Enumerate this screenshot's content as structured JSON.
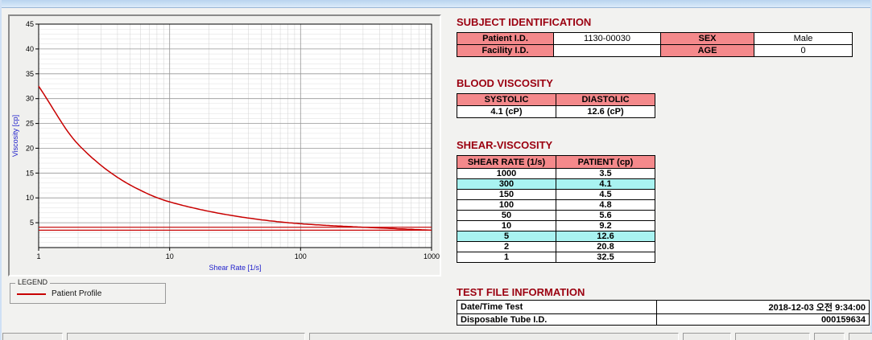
{
  "colors": {
    "header_pink": "#f4898b",
    "highlight_cyan": "#a9f3f1",
    "heading_red": "#9b0010",
    "curve_red": "#c80000",
    "axis_label_blue": "#2222cc",
    "title_strip_blue": "#c6dcf4"
  },
  "chart_data": {
    "type": "line",
    "x": [
      1,
      2,
      5,
      10,
      50,
      100,
      150,
      300,
      1000
    ],
    "series": [
      {
        "name": "Patient Profile",
        "values": [
          32.5,
          20.8,
          12.6,
          9.2,
          5.6,
          4.8,
          4.5,
          4.1,
          3.5
        ]
      }
    ],
    "x_scale": "log",
    "xlim": [
      1,
      1000
    ],
    "ylim": [
      0,
      45
    ],
    "x_ticks": [
      1,
      10,
      100,
      1000
    ],
    "y_major_ticks": [
      5,
      10,
      15,
      20,
      25,
      30,
      35,
      40,
      45
    ],
    "reference_lines": [
      3.5,
      4.1
    ],
    "xlabel": "Shear Rate [1/s]",
    "ylabel": "Viscosity [cp]",
    "grid": true,
    "legend_position": "below-left",
    "title": ""
  },
  "legend": {
    "title": "LEGEND",
    "entries": [
      {
        "label": "Patient Profile",
        "color": "#c80000"
      }
    ]
  },
  "subject": {
    "title": "SUBJECT IDENTIFICATION",
    "rows": [
      {
        "l1": "Patient I.D.",
        "v1": "1130-00030",
        "l2": "SEX",
        "v2": "Male"
      },
      {
        "l1": "Facility I.D.",
        "v1": "",
        "l2": "AGE",
        "v2": "0"
      }
    ]
  },
  "blood_viscosity": {
    "title": "BLOOD VISCOSITY",
    "headers": [
      "SYSTOLIC",
      "DIASTOLIC"
    ],
    "values": [
      "4.1 (cP)",
      "12.6 (cP)"
    ]
  },
  "shear_viscosity": {
    "title": "SHEAR-VISCOSITY",
    "headers": [
      "SHEAR RATE (1/s)",
      "PATIENT (cp)"
    ],
    "rows": [
      {
        "rate": "1000",
        "value": "3.5",
        "highlight": false
      },
      {
        "rate": "300",
        "value": "4.1",
        "highlight": true
      },
      {
        "rate": "150",
        "value": "4.5",
        "highlight": false
      },
      {
        "rate": "100",
        "value": "4.8",
        "highlight": false
      },
      {
        "rate": "50",
        "value": "5.6",
        "highlight": false
      },
      {
        "rate": "10",
        "value": "9.2",
        "highlight": false
      },
      {
        "rate": "5",
        "value": "12.6",
        "highlight": true
      },
      {
        "rate": "2",
        "value": "20.8",
        "highlight": false
      },
      {
        "rate": "1",
        "value": "32.5",
        "highlight": false
      }
    ]
  },
  "test_file": {
    "title": "TEST FILE INFORMATION",
    "rows": [
      {
        "label": "Date/Time Test",
        "value": "2018-12-03  오전 9:34:00"
      },
      {
        "label": "Disposable Tube I.D.",
        "value": "000159634"
      }
    ]
  }
}
